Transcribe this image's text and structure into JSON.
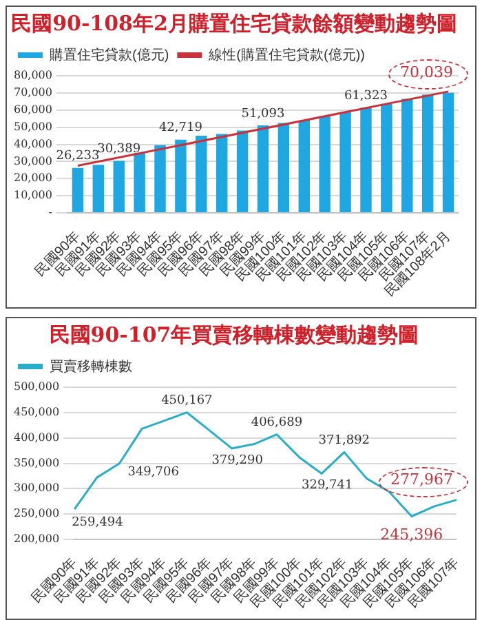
{
  "chart_data": [
    {
      "type": "bar",
      "title": "民國90-108年2月購置住宅貸款餘額變動趨勢圖",
      "categories": [
        "民國90年",
        "民國91年",
        "民國92年",
        "民國93年",
        "民國94年",
        "民國95年",
        "民國96年",
        "民國97年",
        "民國98年",
        "民國99年",
        "民國100年",
        "民國101年",
        "民國102年",
        "民國103年",
        "民國104年",
        "民國105年",
        "民國106年",
        "民國107年",
        "民國108年2月"
      ],
      "series": [
        {
          "name": "購置住宅貸款(億元)",
          "color": "#1ea7e1",
          "values": [
            26233,
            28000,
            30389,
            35000,
            39500,
            42719,
            45000,
            46000,
            48000,
            51093,
            52500,
            54000,
            56500,
            58700,
            61323,
            63500,
            66500,
            69000,
            70039
          ],
          "value_labels": [
            "26,233",
            null,
            "30,389",
            null,
            null,
            "42,719",
            null,
            null,
            null,
            "51,093",
            null,
            null,
            null,
            null,
            "61,323",
            null,
            null,
            null,
            null
          ]
        },
        {
          "name": "線性(購置住宅貸款(億元))",
          "type": "line",
          "color": "#c8323c",
          "x": [
            "民國90年",
            "民國108年2月"
          ],
          "values": [
            27500,
            70800
          ]
        }
      ],
      "ylim": [
        0,
        80000
      ],
      "yticks": [
        {
          "value": 0,
          "label": "-"
        },
        {
          "value": 10000,
          "label": "10,000"
        },
        {
          "value": 20000,
          "label": "20,000"
        },
        {
          "value": 30000,
          "label": "30,000"
        },
        {
          "value": 40000,
          "label": "40,000"
        },
        {
          "value": 50000,
          "label": "50,000"
        },
        {
          "value": 60000,
          "label": "60,000"
        },
        {
          "value": 70000,
          "label": "70,000"
        },
        {
          "value": 80000,
          "label": "80,000"
        }
      ],
      "grid": "y",
      "legend": "top left",
      "marker": "none",
      "annotations": [
        {
          "text": "70,039",
          "x": "民國108年2月",
          "y": 70039
        }
      ]
    },
    {
      "type": "line",
      "title": "民國90-107年買賣移轉棟數變動趨勢圖",
      "categories": [
        "民國90年",
        "民國91年",
        "民國92年",
        "民國93年",
        "民國94年",
        "民國95年",
        "民國96年",
        "民國97年",
        "民國98年",
        "民國99年",
        "民國100年",
        "民國101年",
        "民國102年",
        "民國103年",
        "民國104年",
        "民國105年",
        "民國106年",
        "民國107年"
      ],
      "series": [
        {
          "name": "買賣移轉棟數",
          "color": "#2aaec8",
          "values": [
            259494,
            322000,
            349706,
            418000,
            434000,
            450167,
            415000,
            379290,
            388000,
            406689,
            362000,
            329741,
            371892,
            320000,
            294000,
            245396,
            265000,
            277967
          ],
          "value_labels": [
            "259,494",
            null,
            "349,706",
            null,
            null,
            "450,167",
            null,
            "379,290",
            null,
            "406,689",
            null,
            "329,741",
            "371,892",
            null,
            null,
            null,
            null,
            null
          ]
        }
      ],
      "ylim": [
        200000,
        500000
      ],
      "yticks": [
        {
          "value": 200000,
          "label": "200,000"
        },
        {
          "value": 250000,
          "label": "250,000"
        },
        {
          "value": 300000,
          "label": "300,000"
        },
        {
          "value": 350000,
          "label": "350,000"
        },
        {
          "value": 400000,
          "label": "400,000"
        },
        {
          "value": 450000,
          "label": "450,000"
        },
        {
          "value": 500000,
          "label": "500,000"
        }
      ],
      "grid": "y",
      "legend": "top left",
      "marker": "none",
      "annotations": [
        {
          "text": "245,396",
          "x": "民國105年",
          "y": 245396
        },
        {
          "text": "277,967",
          "x": "民國107年",
          "y": 277967
        }
      ]
    }
  ]
}
